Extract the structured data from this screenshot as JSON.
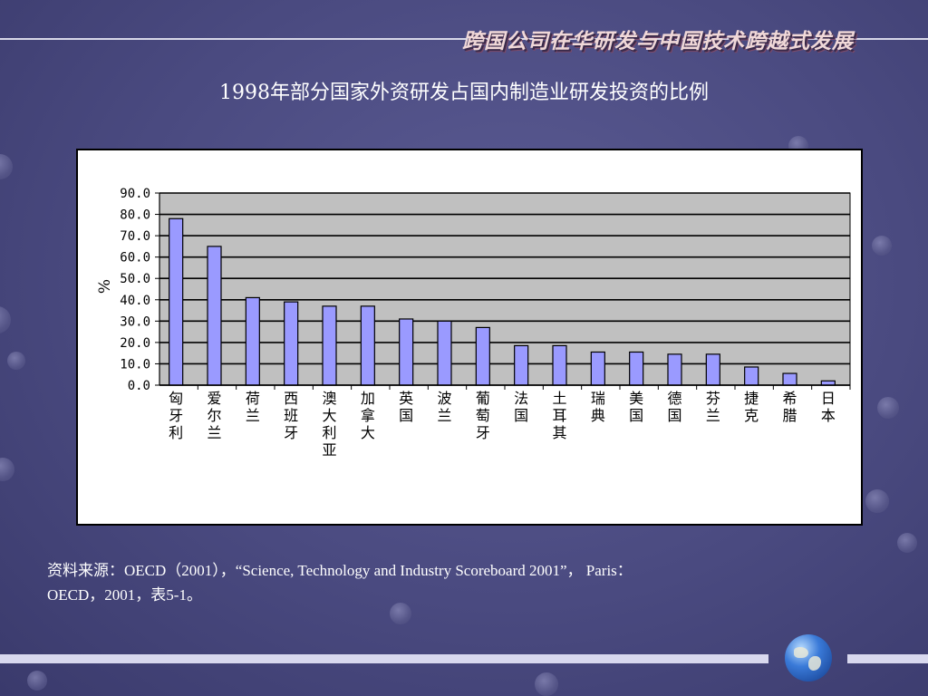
{
  "header": {
    "banner_text": "跨国公司在华研发与中国技术跨越式发展"
  },
  "slide": {
    "title": "1998年部分国家外资研发占国内制造业研发投资的比例",
    "source_line1": "资料来源：OECD（2001），“Science, Technology and Industry Scoreboard 2001”， Paris：",
    "source_line2": "OECD，2001，表5-1。"
  },
  "colors": {
    "bar_fill": "#9a9aff",
    "plot_bg": "#c0c0c0",
    "gridline": "#000000"
  },
  "chart_data": {
    "type": "bar",
    "title": "",
    "xlabel": "",
    "ylabel": "%",
    "ylim": [
      0,
      90
    ],
    "yticks": [
      "0.0",
      "10.0",
      "20.0",
      "30.0",
      "40.0",
      "50.0",
      "60.0",
      "70.0",
      "80.0",
      "90.0"
    ],
    "grid": true,
    "categories": [
      "匈牙利",
      "爱尔兰",
      "荷兰",
      "西班牙",
      "澳大利亚",
      "加拿大",
      "英国",
      "波兰",
      "葡萄牙",
      "法国",
      "土耳其",
      "瑞典",
      "美国",
      "德国",
      "芬兰",
      "捷克",
      "希腊",
      "日本"
    ],
    "values": [
      78,
      65,
      41,
      39,
      37,
      37,
      31,
      30,
      27,
      18.5,
      18.5,
      15.5,
      15.5,
      14.5,
      14.5,
      8.5,
      5.5,
      2
    ]
  }
}
